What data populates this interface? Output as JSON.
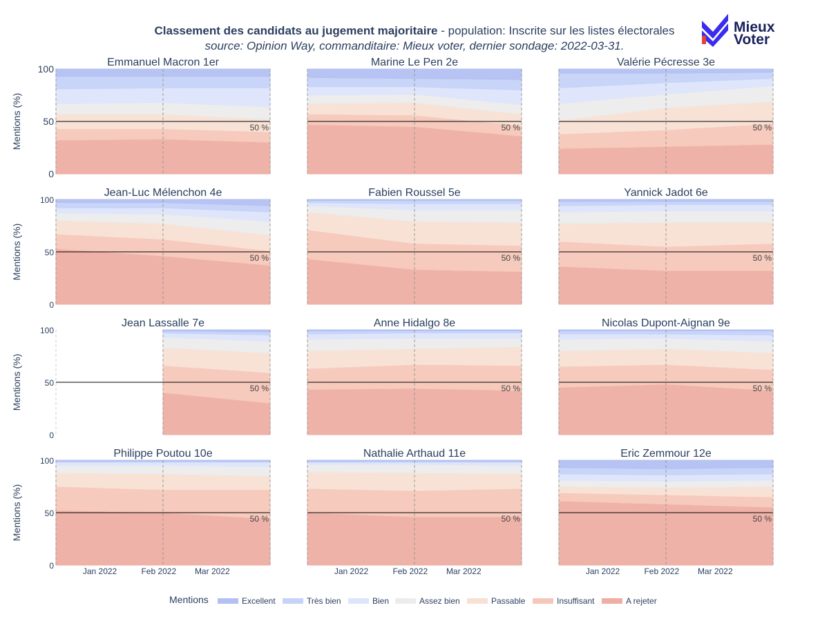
{
  "title_bold": "Classement des candidats au jugement majoritaire",
  "title_rest": " - population: Inscrite sur les listes électorales",
  "subtitle": "source: Opinion Way, commanditaire: Mieux voter, dernier sondage: 2022-03-31.",
  "logo": {
    "line1": "Mieux",
    "line2": "Voter",
    "mark_color": "#3a2cf0",
    "accent_color": "#e4453a"
  },
  "chart_data": {
    "type": "area",
    "stacked": true,
    "x": [
      "2022-01",
      "2022-02",
      "2022-03"
    ],
    "x_tick_labels": [
      "Jan 2022",
      "Feb 2022",
      "Mar 2022"
    ],
    "ylabel": "Mentions (%)",
    "ylim": [
      0,
      100
    ],
    "y_ticks": [
      0,
      50,
      100
    ],
    "reference_line": {
      "y": 50,
      "label": "50 %"
    },
    "legend_title": "Mentions",
    "legend_position": "bottom",
    "grades": [
      {
        "name": "Excellent",
        "color": "#b3c0f2"
      },
      {
        "name": "Très bien",
        "color": "#c5d3f8"
      },
      {
        "name": "Bien",
        "color": "#dde5fb"
      },
      {
        "name": "Assez bien",
        "color": "#ececec"
      },
      {
        "name": "Passable",
        "color": "#f8e0d4"
      },
      {
        "name": "Insuffisant",
        "color": "#f6c7b8"
      },
      {
        "name": "A rejeter",
        "color": "#eeaea3"
      }
    ],
    "panels": [
      {
        "name": "Emmanuel Macron 1er",
        "series": {
          "A rejeter": [
            32,
            33,
            30
          ],
          "Insuffisant": [
            11,
            10,
            10
          ],
          "Passable": [
            14,
            14,
            12
          ],
          "Assez bien": [
            10,
            11,
            12
          ],
          "Bien": [
            14,
            14,
            18
          ],
          "Très bien": [
            12,
            11,
            11
          ],
          "Excellent": [
            7,
            7,
            7
          ]
        }
      },
      {
        "name": "Marine Le Pen 2e",
        "series": {
          "A rejeter": [
            47,
            45,
            36
          ],
          "Insuffisant": [
            10,
            11,
            10
          ],
          "Passable": [
            10,
            12,
            11
          ],
          "Assez bien": [
            8,
            8,
            9
          ],
          "Bien": [
            8,
            7,
            14
          ],
          "Très bien": [
            9,
            8,
            10
          ],
          "Excellent": [
            8,
            9,
            10
          ]
        }
      },
      {
        "name": "Valérie Pécresse 3e",
        "series": {
          "A rejeter": [
            24,
            26,
            28
          ],
          "Insuffisant": [
            14,
            16,
            20
          ],
          "Passable": [
            13,
            21,
            21
          ],
          "Assez bien": [
            16,
            13,
            15
          ],
          "Bien": [
            15,
            11,
            7
          ],
          "Très bien": [
            14,
            9,
            6
          ],
          "Excellent": [
            4,
            4,
            3
          ]
        }
      },
      {
        "name": "Jean-Luc Mélenchon 4e",
        "series": {
          "A rejeter": [
            53,
            46,
            37
          ],
          "Insuffisant": [
            14,
            16,
            14
          ],
          "Passable": [
            13,
            15,
            15
          ],
          "Assez bien": [
            7,
            9,
            13
          ],
          "Bien": [
            5,
            6,
            9
          ],
          "Très bien": [
            5,
            5,
            6
          ],
          "Excellent": [
            3,
            3,
            6
          ]
        }
      },
      {
        "name": "Fabien Roussel 5e",
        "series": {
          "A rejeter": [
            43,
            33,
            31
          ],
          "Insuffisant": [
            28,
            25,
            25
          ],
          "Passable": [
            17,
            21,
            22
          ],
          "Assez bien": [
            6,
            11,
            12
          ],
          "Bien": [
            3,
            6,
            6
          ],
          "Très bien": [
            2,
            3,
            3
          ],
          "Excellent": [
            1,
            1,
            1
          ]
        }
      },
      {
        "name": "Yannick Jadot 6e",
        "series": {
          "A rejeter": [
            36,
            32,
            32
          ],
          "Insuffisant": [
            24,
            23,
            26
          ],
          "Passable": [
            17,
            23,
            20
          ],
          "Assez bien": [
            11,
            11,
            11
          ],
          "Bien": [
            6,
            6,
            6
          ],
          "Très bien": [
            4,
            3,
            3
          ],
          "Excellent": [
            2,
            2,
            2
          ]
        }
      },
      {
        "name": "Jean Lassalle 7e",
        "series": {
          "A rejeter": [
            null,
            40,
            30
          ],
          "Insuffisant": [
            null,
            26,
            29
          ],
          "Passable": [
            null,
            17,
            19
          ],
          "Assez bien": [
            null,
            10,
            11
          ],
          "Bien": [
            null,
            4,
            6
          ],
          "Très bien": [
            null,
            2,
            3
          ],
          "Excellent": [
            null,
            1,
            2
          ]
        }
      },
      {
        "name": "Anne Hidalgo 8e",
        "series": {
          "A rejeter": [
            43,
            44,
            42
          ],
          "Insuffisant": [
            20,
            23,
            24
          ],
          "Passable": [
            17,
            15,
            18
          ],
          "Assez bien": [
            11,
            10,
            8
          ],
          "Bien": [
            5,
            5,
            5
          ],
          "Très bien": [
            3,
            2,
            2
          ],
          "Excellent": [
            1,
            1,
            1
          ]
        }
      },
      {
        "name": "Nicolas Dupont-Aignan 9e",
        "series": {
          "A rejeter": [
            45,
            48,
            42
          ],
          "Insuffisant": [
            20,
            19,
            20
          ],
          "Passable": [
            15,
            15,
            16
          ],
          "Assez bien": [
            11,
            10,
            11
          ],
          "Bien": [
            5,
            4,
            6
          ],
          "Très bien": [
            3,
            3,
            4
          ],
          "Excellent": [
            1,
            1,
            1
          ]
        }
      },
      {
        "name": "Philippe Poutou 10e",
        "series": {
          "A rejeter": [
            52,
            50,
            44
          ],
          "Insuffisant": [
            23,
            22,
            28
          ],
          "Passable": [
            13,
            15,
            13
          ],
          "Assez bien": [
            7,
            8,
            9
          ],
          "Bien": [
            3,
            3,
            4
          ],
          "Très bien": [
            1,
            1,
            1
          ],
          "Excellent": [
            1,
            1,
            1
          ]
        }
      },
      {
        "name": "Nathalie Arthaud 11e",
        "series": {
          "A rejeter": [
            50,
            46,
            46
          ],
          "Insuffisant": [
            23,
            25,
            27
          ],
          "Passable": [
            16,
            17,
            14
          ],
          "Assez bien": [
            7,
            8,
            8
          ],
          "Bien": [
            2,
            2,
            3
          ],
          "Très bien": [
            1,
            1,
            1
          ],
          "Excellent": [
            1,
            1,
            1
          ]
        }
      },
      {
        "name": "Eric Zemmour 12e",
        "series": {
          "A rejeter": [
            61,
            58,
            55
          ],
          "Insuffisant": [
            8,
            9,
            10
          ],
          "Passable": [
            6,
            7,
            10
          ],
          "Assez bien": [
            6,
            6,
            6
          ],
          "Bien": [
            6,
            6,
            6
          ],
          "Très bien": [
            6,
            6,
            6
          ],
          "Excellent": [
            7,
            8,
            7
          ]
        }
      }
    ]
  }
}
